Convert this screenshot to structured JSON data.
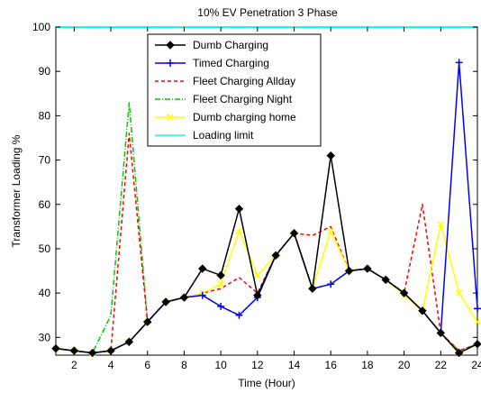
{
  "chart_data": {
    "type": "line",
    "title": "10% EV Penetration 3 Phase",
    "xlabel": "Time (Hour)",
    "ylabel": "Transformer Loading %",
    "xlim": [
      1,
      24
    ],
    "ylim": [
      26,
      100
    ],
    "xticks": [
      2,
      4,
      6,
      8,
      10,
      12,
      14,
      16,
      18,
      20,
      22,
      24
    ],
    "yticks": [
      30,
      40,
      50,
      60,
      70,
      80,
      90,
      100
    ],
    "grid": false,
    "legend_position": "top-center",
    "x": [
      1,
      2,
      3,
      4,
      5,
      6,
      7,
      8,
      9,
      10,
      11,
      12,
      13,
      14,
      15,
      16,
      17,
      18,
      19,
      20,
      21,
      22,
      23,
      24
    ],
    "series": [
      {
        "name": "Dumb Charging",
        "color": "#000000",
        "dash": "solid",
        "marker": "diamond",
        "values": [
          27.5,
          27,
          26.5,
          27,
          29,
          33.5,
          38,
          39,
          45.5,
          44,
          59,
          39.5,
          48.5,
          53.5,
          41,
          71,
          45,
          45.5,
          43,
          40,
          36,
          31,
          26.5,
          28.5
        ]
      },
      {
        "name": "Timed Charging",
        "color": "#0000ff",
        "dash": "solid",
        "marker": "plus",
        "values": [
          27.5,
          27,
          26.5,
          27,
          29,
          33.5,
          38,
          39,
          39.5,
          37,
          35,
          39,
          48.5,
          53.5,
          41,
          42,
          45,
          45.5,
          43,
          40,
          36,
          31,
          92,
          36.5
        ]
      },
      {
        "name": "Fleet Charging Allday",
        "color": "#ff0000",
        "dash": "dash",
        "marker": "none",
        "values": [
          27.5,
          27,
          26.5,
          27,
          76,
          33.5,
          38,
          39,
          40,
          41,
          43.5,
          40,
          48.5,
          53.5,
          53,
          55,
          45,
          45.5,
          43,
          40,
          60,
          31,
          27,
          28.5
        ]
      },
      {
        "name": "Fleet Charging Night",
        "color": "#00cc00",
        "dash": "dashdot",
        "marker": "none",
        "values": [
          27.5,
          27,
          26.5,
          35,
          83,
          33.5,
          38,
          39,
          39.5,
          37,
          35,
          39,
          48.5,
          53.5,
          41,
          42,
          45,
          45.5,
          43,
          40,
          36,
          31,
          27,
          28.5
        ]
      },
      {
        "name": "Dumb charging home",
        "color": "#ffff00",
        "dash": "solid",
        "marker": "x",
        "values": [
          27.5,
          27,
          26.5,
          27,
          29,
          33.5,
          38,
          39,
          40,
          42,
          54,
          44,
          48.5,
          53.5,
          41,
          54,
          45,
          45.5,
          43,
          39.5,
          36,
          55.5,
          40,
          33.5
        ]
      },
      {
        "name": "Loading limit",
        "color": "#00ffff",
        "dash": "solid",
        "marker": "none",
        "values": [
          100,
          100,
          100,
          100,
          100,
          100,
          100,
          100,
          100,
          100,
          100,
          100,
          100,
          100,
          100,
          100,
          100,
          100,
          100,
          100,
          100,
          100,
          100,
          100
        ]
      }
    ]
  }
}
